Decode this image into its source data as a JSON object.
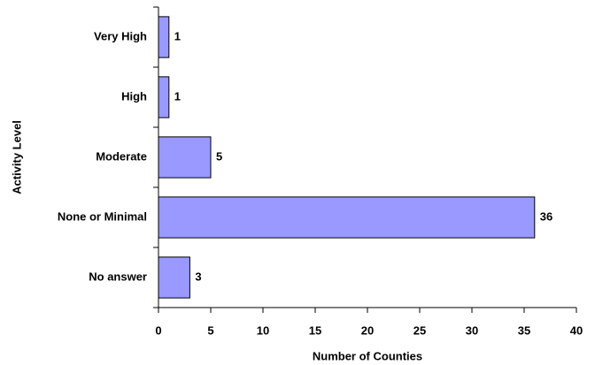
{
  "chart_data": {
    "type": "bar",
    "orientation": "horizontal",
    "x_label": "Number of Counties",
    "y_label": "Activity Level",
    "categories": [
      "Very High",
      "High",
      "Moderate",
      "None or Minimal",
      "No answer"
    ],
    "values": [
      1,
      1,
      5,
      36,
      3
    ],
    "color": "#9999ff",
    "xlim": [
      0,
      40
    ],
    "xticks": [
      0,
      5,
      10,
      15,
      20,
      25,
      30,
      35,
      40
    ],
    "grid": false
  }
}
